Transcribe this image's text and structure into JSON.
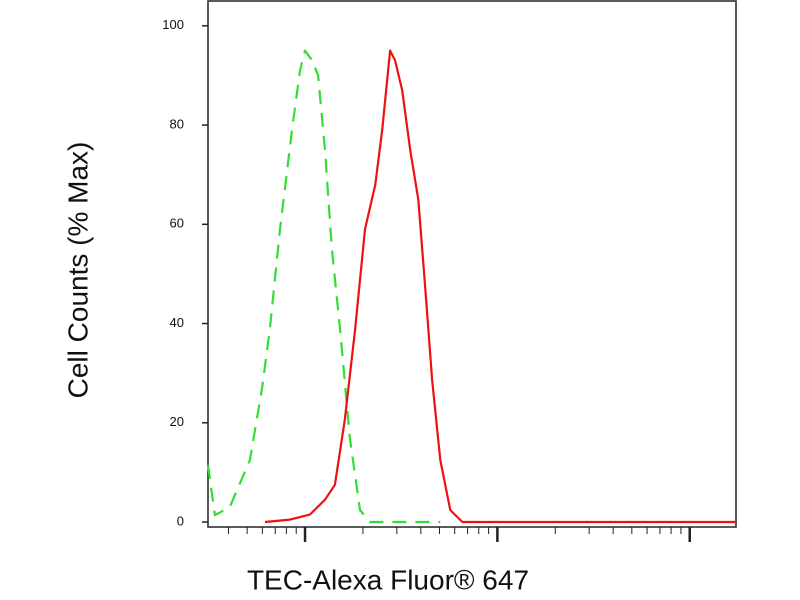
{
  "chart_data": {
    "type": "line",
    "y_label": "Cell Counts (% Max)",
    "x_label": "TEC-Alexa Fluor® 647",
    "xscale": "log",
    "xlim": [
      3.13,
      1740
    ],
    "xticks": [
      10,
      100,
      1000
    ],
    "xminorticks": [
      4,
      5,
      6,
      7,
      8,
      9,
      20,
      30,
      40,
      50,
      60,
      70,
      80,
      90,
      200,
      300,
      400,
      500,
      600,
      700,
      800,
      900
    ],
    "ylim": [
      -1,
      105
    ],
    "yticks": [
      0,
      20,
      40,
      60,
      80,
      100
    ],
    "grid": false,
    "series": [
      {
        "color": "#33dd33",
        "dash": true,
        "x": [
          3.13,
          3.4,
          4.06,
          5.17,
          5.98,
          6.57,
          7.41,
          8.56,
          9.42,
          10,
          10.9,
          11.7,
          12.7,
          13.8,
          15.2,
          17.1,
          19.3,
          21.8,
          50.5
        ],
        "values": [
          11.5,
          1.4,
          3,
          12.5,
          27,
          39,
          59,
          79,
          91,
          95,
          93,
          90,
          75,
          55,
          39,
          17,
          2.4,
          0,
          0
        ]
      },
      {
        "color": "#ee1111",
        "dash": false,
        "x": [
          6.19,
          8.35,
          10.6,
          12.7,
          14.3,
          16.1,
          18.2,
          20.5,
          23.2,
          25.2,
          27.7,
          29.4,
          32,
          35.2,
          38.8,
          42.2,
          45.8,
          50.5,
          56.9,
          65.8,
          1740
        ],
        "values": [
          0,
          0.5,
          1.5,
          4.5,
          7.5,
          20.6,
          38.8,
          59,
          68,
          79,
          95,
          93,
          87,
          75,
          65,
          47,
          28.7,
          12.5,
          2.4,
          0,
          0
        ]
      }
    ]
  }
}
